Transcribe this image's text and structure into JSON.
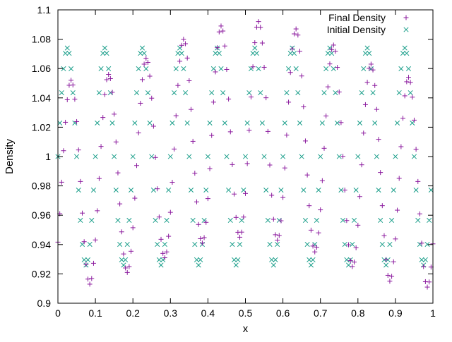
{
  "chart_data": {
    "type": "scatter",
    "title": "",
    "xlabel": "x",
    "ylabel": "Density",
    "xlim": [
      0,
      1
    ],
    "ylim": [
      0.9,
      1.1
    ],
    "xticks": [
      "0",
      "0.1",
      "0.2",
      "0.3",
      "0.4",
      "0.5",
      "0.6",
      "0.7",
      "0.8",
      "0.9",
      "1"
    ],
    "yticks": [
      "0.9",
      "0.92",
      "0.94",
      "0.96",
      "0.98",
      "1",
      "1.02",
      "1.04",
      "1.06",
      "1.08",
      "1.1"
    ],
    "grid": false,
    "legend_position": "top-right",
    "point_count": 200,
    "series": [
      {
        "name": "Final Density",
        "marker": "plus",
        "color": "#8b1a9e",
        "description": "oscillation, wavelength 0.1, phase ahead of initial by about 0.01",
        "peaks": [
          {
            "x": 0.035,
            "y": 1.052
          },
          {
            "x": 0.135,
            "y": 1.056
          },
          {
            "x": 0.235,
            "y": 1.067
          },
          {
            "x": 0.335,
            "y": 1.08
          },
          {
            "x": 0.435,
            "y": 1.089
          },
          {
            "x": 0.535,
            "y": 1.092
          },
          {
            "x": 0.635,
            "y": 1.087
          },
          {
            "x": 0.735,
            "y": 1.076
          },
          {
            "x": 0.835,
            "y": 1.063
          },
          {
            "x": 0.935,
            "y": 1.054
          }
        ],
        "troughs": [
          {
            "x": 0.085,
            "y": 0.913
          },
          {
            "x": 0.185,
            "y": 0.921
          },
          {
            "x": 0.285,
            "y": 0.931
          },
          {
            "x": 0.385,
            "y": 0.941
          },
          {
            "x": 0.485,
            "y": 0.945
          },
          {
            "x": 0.585,
            "y": 0.943
          },
          {
            "x": 0.685,
            "y": 0.935
          },
          {
            "x": 0.785,
            "y": 0.925
          },
          {
            "x": 0.885,
            "y": 0.915
          },
          {
            "x": 0.985,
            "y": 0.911
          }
        ]
      },
      {
        "name": "Initial Density",
        "marker": "cross",
        "color": "#1a9e8a",
        "description": "1 + 0.074*sin(20*pi*x)",
        "amplitude": 0.074,
        "mean": 1.0,
        "wavelength": 0.1,
        "peak_value": 1.074,
        "trough_value": 0.926
      }
    ]
  }
}
